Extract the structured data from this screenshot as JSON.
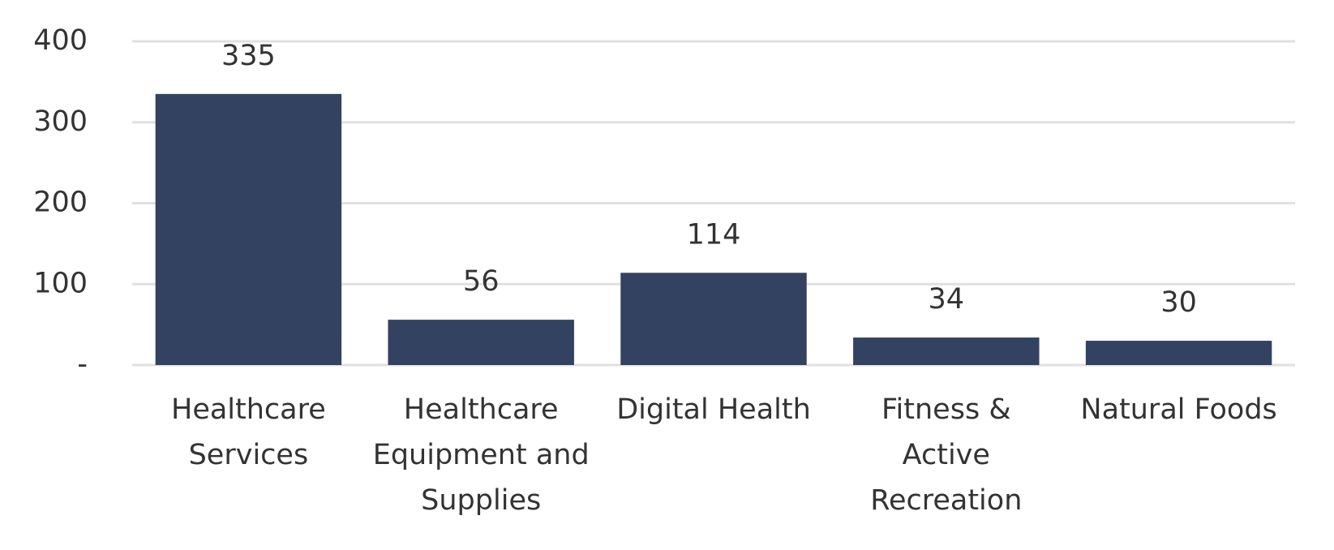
{
  "chart_data": {
    "type": "bar",
    "categories": [
      "Healthcare Services",
      "Healthcare Equipment and Supplies",
      "Digital Health",
      "Fitness & Active Recreation",
      "Natural Foods"
    ],
    "values": [
      335,
      56,
      114,
      34,
      30
    ],
    "color": "#334260",
    "ylim": [
      0,
      400
    ],
    "yticks": [
      {
        "value": 0,
        "label": "-"
      },
      100,
      200,
      300,
      400
    ],
    "grid": true
  }
}
